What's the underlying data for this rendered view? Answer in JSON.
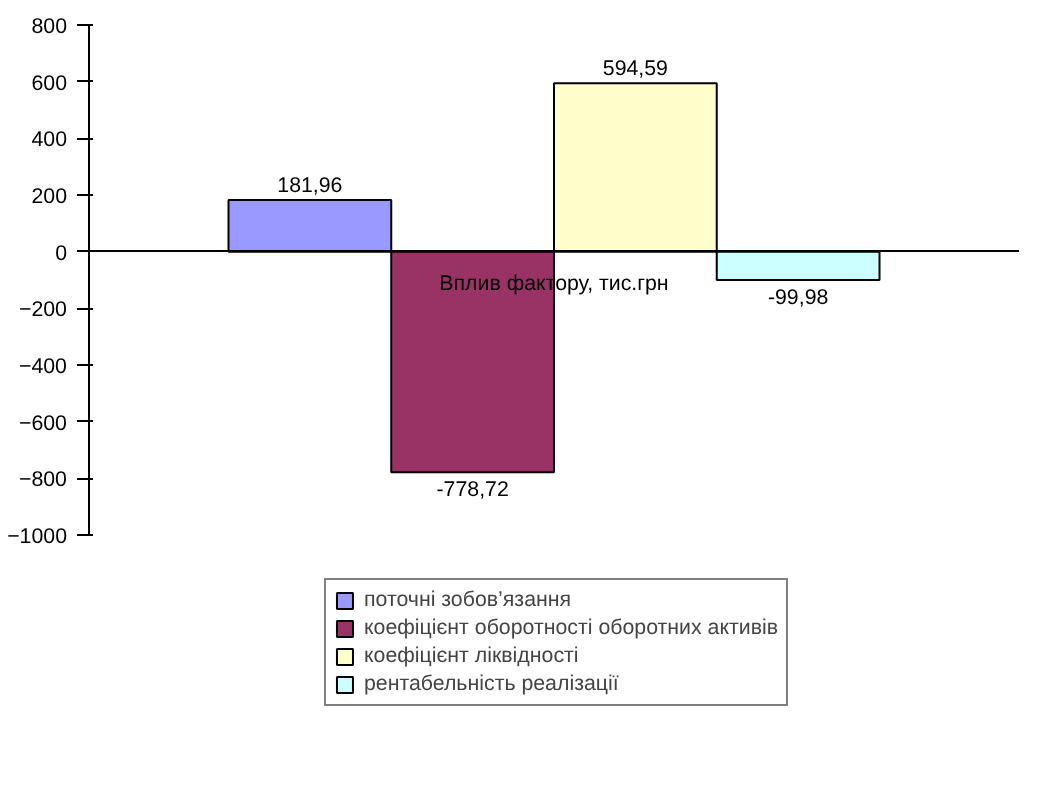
{
  "chart_data": {
    "type": "bar",
    "categories": [
      "Вплив фактору, тис.грн"
    ],
    "series": [
      {
        "name": "поточні зобов’язання",
        "color": "#9999ff",
        "values": [
          181.96
        ],
        "value_labels": [
          "181,96"
        ]
      },
      {
        "name": "коефіцієнт оборотності оборотних активів",
        "color": "#993366",
        "values": [
          -778.72
        ],
        "value_labels": [
          "-778,72"
        ]
      },
      {
        "name": "коефіцієнт ліквідності",
        "color": "#ffffcc",
        "values": [
          594.59
        ],
        "value_labels": [
          "594,59"
        ]
      },
      {
        "name": "рентабельність реалізації",
        "color": "#ccffff",
        "values": [
          -99.98
        ],
        "value_labels": [
          "-99,98"
        ]
      }
    ],
    "ylim": [
      -1000,
      800
    ],
    "yticks": [
      -1000,
      -800,
      -600,
      -400,
      -200,
      0,
      200,
      400,
      600,
      800
    ],
    "legend": "bottom"
  }
}
